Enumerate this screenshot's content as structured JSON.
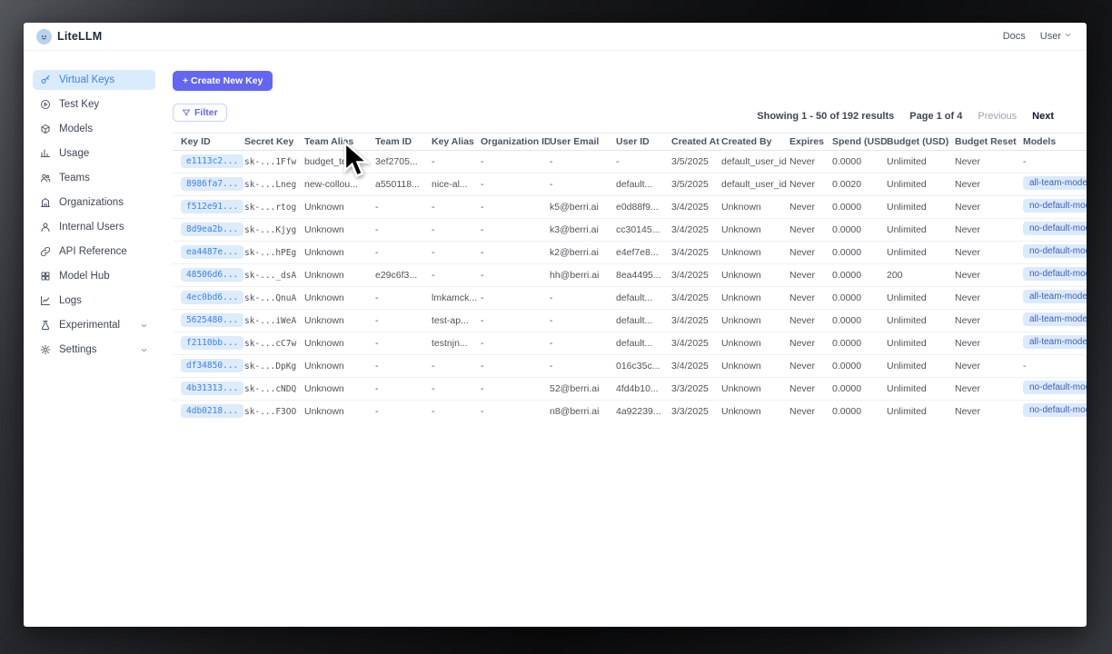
{
  "app": {
    "brand": "LiteLLM",
    "nav": {
      "docs": "Docs",
      "user": "User"
    }
  },
  "sidebar": {
    "items": [
      {
        "label": "Virtual Keys",
        "icon": "key-icon",
        "active": true,
        "has_chevron": false
      },
      {
        "label": "Test Key",
        "icon": "play-circle-icon",
        "active": false,
        "has_chevron": false
      },
      {
        "label": "Models",
        "icon": "cube-icon",
        "active": false,
        "has_chevron": false
      },
      {
        "label": "Usage",
        "icon": "bar-chart-icon",
        "active": false,
        "has_chevron": false
      },
      {
        "label": "Teams",
        "icon": "users-icon",
        "active": false,
        "has_chevron": false
      },
      {
        "label": "Organizations",
        "icon": "building-icon",
        "active": false,
        "has_chevron": false
      },
      {
        "label": "Internal Users",
        "icon": "user-icon",
        "active": false,
        "has_chevron": false
      },
      {
        "label": "API Reference",
        "icon": "link-icon",
        "active": false,
        "has_chevron": false
      },
      {
        "label": "Model Hub",
        "icon": "grid-icon",
        "active": false,
        "has_chevron": false
      },
      {
        "label": "Logs",
        "icon": "line-chart-icon",
        "active": false,
        "has_chevron": false
      },
      {
        "label": "Experimental",
        "icon": "flask-icon",
        "active": false,
        "has_chevron": true
      },
      {
        "label": "Settings",
        "icon": "gear-icon",
        "active": false,
        "has_chevron": true
      }
    ]
  },
  "toolbar": {
    "create_button": "+ Create New Key",
    "filter_button": "Filter"
  },
  "pagination": {
    "showing": "Showing 1 - 50 of 192 results",
    "page": "Page 1 of 4",
    "previous": "Previous",
    "next": "Next"
  },
  "table": {
    "columns": [
      "Key ID",
      "Secret Key",
      "Team Alias",
      "Team ID",
      "Key Alias",
      "Organization ID",
      "User Email",
      "User ID",
      "Created At",
      "Created By",
      "Expires",
      "Spend (USD)",
      "Budget (USD)",
      "Budget Reset",
      "Models"
    ],
    "rows": [
      [
        "e1113c2...",
        "sk-...1Ffw",
        "budget_te...",
        "3ef2705...",
        "-",
        "-",
        "-",
        "-",
        "3/5/2025",
        "default_user_id",
        "Never",
        "0.0000",
        "Unlimited",
        "Never",
        "-"
      ],
      [
        "8986fa7...",
        "sk-...Lneg",
        "new-collou...",
        "a550118...",
        "nice-al...",
        "-",
        "-",
        "default...",
        "3/5/2025",
        "default_user_id",
        "Never",
        "0.0020",
        "Unlimited",
        "Never",
        "all-team-models"
      ],
      [
        "f512e91...",
        "sk-...rtog",
        "Unknown",
        "-",
        "-",
        "-",
        "k5@berri.ai",
        "e0d88f9...",
        "3/4/2025",
        "Unknown",
        "Never",
        "0.0000",
        "Unlimited",
        "Never",
        "no-default-models"
      ],
      [
        "8d9ea2b...",
        "sk-...Kjyg",
        "Unknown",
        "-",
        "-",
        "-",
        "k3@berri.ai",
        "cc30145...",
        "3/4/2025",
        "Unknown",
        "Never",
        "0.0000",
        "Unlimited",
        "Never",
        "no-default-models"
      ],
      [
        "ea4487e...",
        "sk-...hPEg",
        "Unknown",
        "-",
        "-",
        "-",
        "k2@berri.ai",
        "e4ef7e8...",
        "3/4/2025",
        "Unknown",
        "Never",
        "0.0000",
        "Unlimited",
        "Never",
        "no-default-models"
      ],
      [
        "48506d6...",
        "sk-..._dsA",
        "Unknown",
        "e29c6f3...",
        "-",
        "-",
        "hh@berri.ai",
        "8ea4495...",
        "3/4/2025",
        "Unknown",
        "Never",
        "0.0000",
        "200",
        "Never",
        "no-default-models"
      ],
      [
        "4ec0bd6...",
        "sk-...QnuA",
        "Unknown",
        "-",
        "lmkamck...",
        "-",
        "-",
        "default...",
        "3/4/2025",
        "Unknown",
        "Never",
        "0.0000",
        "Unlimited",
        "Never",
        "all-team-models"
      ],
      [
        "5625480...",
        "sk-...iWeA",
        "Unknown",
        "-",
        "test-ap...",
        "-",
        "-",
        "default...",
        "3/4/2025",
        "Unknown",
        "Never",
        "0.0000",
        "Unlimited",
        "Never",
        "all-team-models"
      ],
      [
        "f2110bb...",
        "sk-...cC7w",
        "Unknown",
        "-",
        "testnjn...",
        "-",
        "-",
        "default...",
        "3/4/2025",
        "Unknown",
        "Never",
        "0.0000",
        "Unlimited",
        "Never",
        "all-team-models"
      ],
      [
        "df34850...",
        "sk-...DpKg",
        "Unknown",
        "-",
        "-",
        "-",
        "-",
        "016c35c...",
        "3/4/2025",
        "Unknown",
        "Never",
        "0.0000",
        "Unlimited",
        "Never",
        "-"
      ],
      [
        "4b31313...",
        "sk-...cNDQ",
        "Unknown",
        "-",
        "-",
        "-",
        "52@berri.ai",
        "4fd4b10...",
        "3/3/2025",
        "Unknown",
        "Never",
        "0.0000",
        "Unlimited",
        "Never",
        "no-default-models"
      ],
      [
        "4db0218...",
        "sk-...F3OO",
        "Unknown",
        "-",
        "-",
        "-",
        "n8@berri.ai",
        "4a92239...",
        "3/3/2025",
        "Unknown",
        "Never",
        "0.0000",
        "Unlimited",
        "Never",
        "no-default-models"
      ]
    ]
  },
  "colors": {
    "accent": "#6366f1",
    "selected_item_bg": "#d9ebfc",
    "key_link": "#3b82f6",
    "badge_bg": "#dbeafe"
  }
}
